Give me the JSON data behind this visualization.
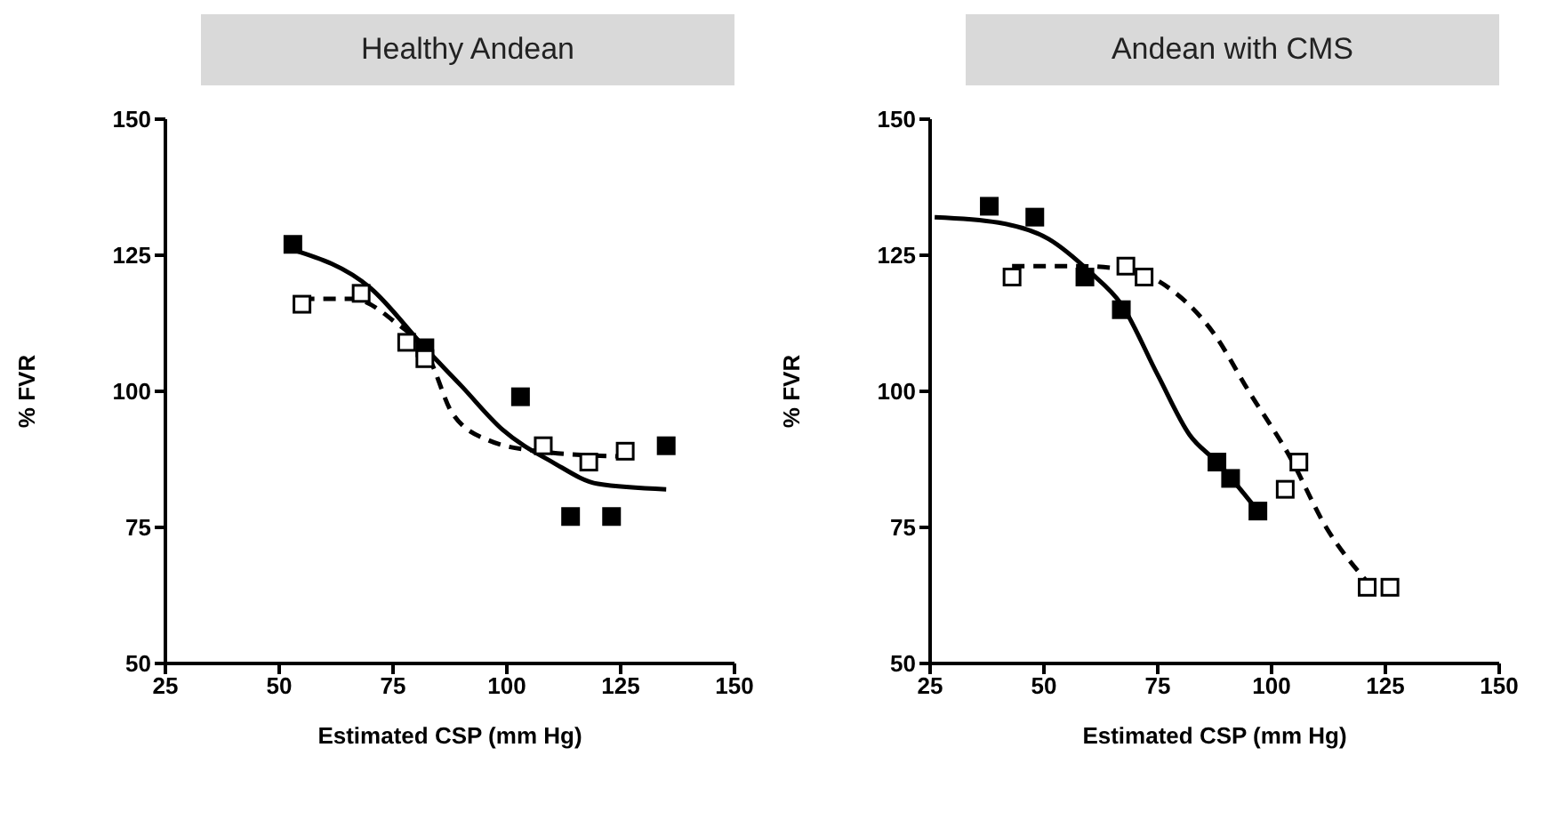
{
  "chart_data": [
    {
      "type": "scatter",
      "title": "Healthy Andean",
      "xlabel": "Estimated CSP (mm Hg)",
      "ylabel": "% FVR",
      "xlim": [
        25,
        150
      ],
      "xticks": [
        25,
        50,
        75,
        100,
        125,
        150
      ],
      "ylim": [
        50,
        150
      ],
      "yticks": [
        50,
        75,
        100,
        125,
        150
      ],
      "grid": false,
      "legend": false,
      "series": [
        {
          "marker": "square",
          "color": "#000000",
          "x": [
            53,
            82,
            103,
            114,
            123,
            135
          ],
          "values": [
            127,
            108,
            99,
            77,
            77,
            90
          ]
        },
        {
          "marker": "square",
          "color": "#ffffff",
          "x": [
            55,
            68,
            78,
            82,
            108,
            118,
            126
          ],
          "values": [
            116,
            118,
            109,
            106,
            90,
            87,
            89
          ]
        },
        {
          "type": "line",
          "marker": "none",
          "line_style": "solid",
          "color": "#000000",
          "x": [
            53,
            70,
            82,
            90,
            99,
            110,
            120,
            135
          ],
          "values": [
            126,
            119,
            108,
            101,
            93,
            87,
            83,
            82
          ]
        },
        {
          "type": "line",
          "marker": "none",
          "line_style": "dashed",
          "color": "#000000",
          "x": [
            55,
            66,
            75,
            83,
            88,
            96,
            107,
            126
          ],
          "values": [
            117,
            117,
            113,
            106,
            96,
            91,
            89,
            88
          ]
        }
      ]
    },
    {
      "type": "scatter",
      "title": "Andean with CMS",
      "xlabel": "Estimated CSP (mm Hg)",
      "ylabel": "% FVR",
      "xlim": [
        25,
        150
      ],
      "xticks": [
        25,
        50,
        75,
        100,
        125,
        150
      ],
      "ylim": [
        50,
        150
      ],
      "yticks": [
        50,
        75,
        100,
        125,
        150
      ],
      "grid": false,
      "legend": false,
      "series": [
        {
          "marker": "square",
          "color": "#000000",
          "x": [
            38,
            48,
            59,
            67,
            88,
            91,
            97
          ],
          "values": [
            134,
            132,
            121,
            115,
            87,
            84,
            78
          ]
        },
        {
          "marker": "square",
          "color": "#ffffff",
          "x": [
            43,
            68,
            72,
            103,
            106,
            121,
            126
          ],
          "values": [
            121,
            123,
            121,
            82,
            87,
            64,
            64
          ]
        },
        {
          "type": "line",
          "marker": "none",
          "line_style": "solid",
          "color": "#000000",
          "x": [
            26,
            40,
            51,
            60,
            67,
            75,
            82,
            88,
            97
          ],
          "values": [
            132,
            131,
            128,
            122,
            116,
            103,
            92,
            87,
            78
          ]
        },
        {
          "type": "line",
          "marker": "none",
          "line_style": "dashed",
          "color": "#000000",
          "x": [
            43,
            58,
            70,
            79,
            87,
            95,
            104,
            112,
            121
          ],
          "values": [
            123,
            123,
            122,
            118,
            111,
            100,
            88,
            75,
            65
          ]
        }
      ]
    }
  ]
}
